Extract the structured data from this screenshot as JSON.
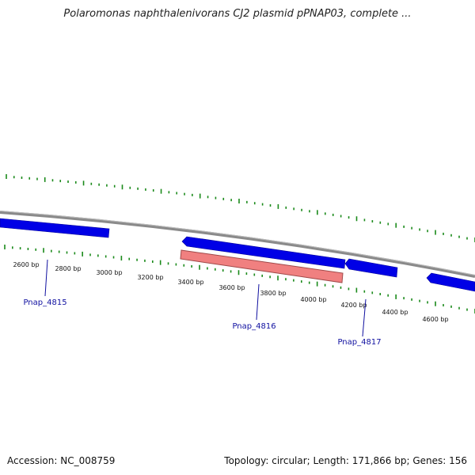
{
  "title": "Polaromonas naphthalenivorans CJ2 plasmid pPNAP03, complete ...",
  "footer": {
    "accession": "Accession: NC_008759",
    "summary": "Topology: circular; Length: 171,866 bp; Genes: 156"
  },
  "colors": {
    "backbone": "#8a8a8a",
    "tick": "#1a8a1a",
    "gene": "#0000e6",
    "gene_highlight": "#f08080",
    "gene_label": "#1010a0"
  },
  "scale_labels": [
    "2600 bp",
    "2800 bp",
    "3000 bp",
    "3200 bp",
    "3400 bp",
    "3600 bp",
    "3800 bp",
    "4000 bp",
    "4200 bp",
    "4400 bp",
    "4600 bp"
  ],
  "genes": [
    {
      "label": "Pnap_4815"
    },
    {
      "label": "Pnap_4816"
    },
    {
      "label": "Pnap_4817"
    }
  ]
}
